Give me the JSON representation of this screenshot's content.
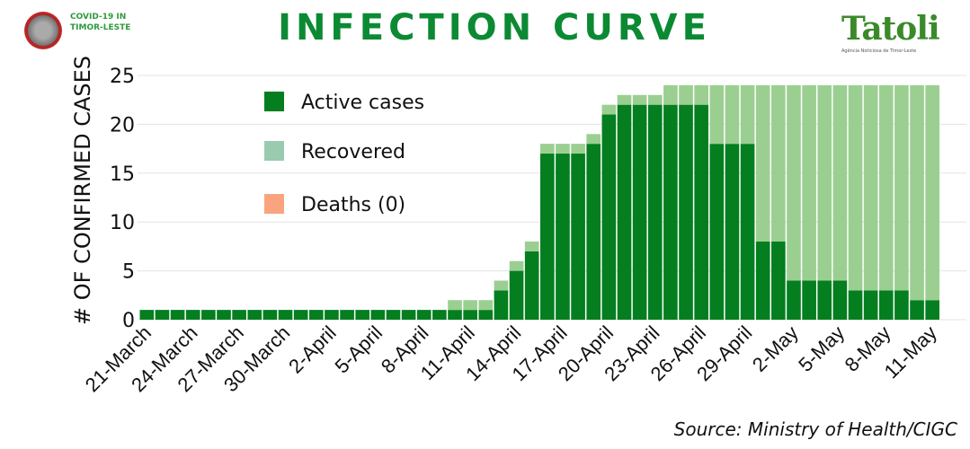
{
  "header": {
    "brand": "COVID-19 IN TIMOR-LESTE",
    "title": "INFECTION CURVE",
    "logo": "Tatoli",
    "logo_tagline": "Agência Noticiosa de Timor-Leste"
  },
  "source": "Source: Ministry of Health/CIGC",
  "chart_data": {
    "type": "bar",
    "stacked": true,
    "title": "INFECTION CURVE",
    "ylabel": "# OF CONFIRMED CASES",
    "xlabel": "",
    "ylim": [
      0,
      25
    ],
    "yticks": [
      0,
      5,
      10,
      15,
      20,
      25
    ],
    "grid": true,
    "legend_placement": "top-left",
    "start_date": "21-March",
    "categories_note": "daily, 21-March to 11-May",
    "tick_labels": [
      "21-March",
      "24-March",
      "27-March",
      "30-March",
      "2-April",
      "5-April",
      "8-April",
      "11-April",
      "14-April",
      "17-April",
      "20-April",
      "23-April",
      "26-April",
      "29-April",
      "2-May",
      "5-May",
      "8-May",
      "11-May"
    ],
    "series": [
      {
        "name": "Active cases",
        "color": "#047e1f",
        "values": [
          1,
          1,
          1,
          1,
          1,
          1,
          1,
          1,
          1,
          1,
          1,
          1,
          1,
          1,
          1,
          1,
          1,
          1,
          1,
          1,
          1,
          1,
          1,
          3,
          5,
          7,
          17,
          17,
          17,
          18,
          21,
          22,
          22,
          22,
          22,
          22,
          22,
          18,
          18,
          18,
          8,
          8,
          4,
          4,
          4,
          4,
          3,
          3,
          3,
          3,
          2,
          2
        ]
      },
      {
        "name": "Recovered",
        "color": "#9bcf91",
        "legend_color": "#98cbb0",
        "values": [
          0,
          0,
          0,
          0,
          0,
          0,
          0,
          0,
          0,
          0,
          0,
          0,
          0,
          0,
          0,
          0,
          0,
          0,
          0,
          0,
          1,
          1,
          1,
          1,
          1,
          1,
          1,
          1,
          1,
          1,
          1,
          1,
          1,
          1,
          2,
          2,
          2,
          6,
          6,
          6,
          16,
          16,
          20,
          20,
          20,
          20,
          21,
          21,
          21,
          21,
          22,
          22
        ]
      },
      {
        "name": "Deaths (0)",
        "color": "#f9a47e",
        "values": [
          0,
          0,
          0,
          0,
          0,
          0,
          0,
          0,
          0,
          0,
          0,
          0,
          0,
          0,
          0,
          0,
          0,
          0,
          0,
          0,
          0,
          0,
          0,
          0,
          0,
          0,
          0,
          0,
          0,
          0,
          0,
          0,
          0,
          0,
          0,
          0,
          0,
          0,
          0,
          0,
          0,
          0,
          0,
          0,
          0,
          0,
          0,
          0,
          0,
          0,
          0,
          0
        ]
      }
    ]
  }
}
